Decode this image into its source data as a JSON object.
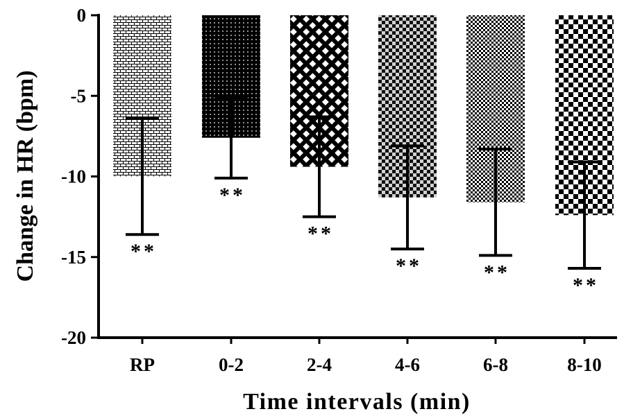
{
  "chart_data": {
    "type": "bar",
    "xlabel": "Time intervals (min)",
    "ylabel": "Change in HR (bpm)",
    "ylim": [
      -20,
      0
    ],
    "yticks": [
      0,
      -5,
      -10,
      -15,
      -20
    ],
    "categories": [
      "RP",
      "0-2",
      "2-4",
      "4-6",
      "6-8",
      "8-10"
    ],
    "values": [
      -10.0,
      -7.6,
      -9.4,
      -11.3,
      -11.6,
      -12.4
    ],
    "error": [
      3.6,
      2.5,
      3.1,
      3.2,
      3.3,
      3.3
    ],
    "annotations": [
      "**",
      "**",
      "**",
      "**",
      "**",
      "**"
    ],
    "patterns": [
      "brick",
      "dots-dark",
      "diamond-lattice",
      "checker-grey",
      "checker-fine",
      "checker-coarse"
    ],
    "grid": false,
    "legend": "none"
  }
}
